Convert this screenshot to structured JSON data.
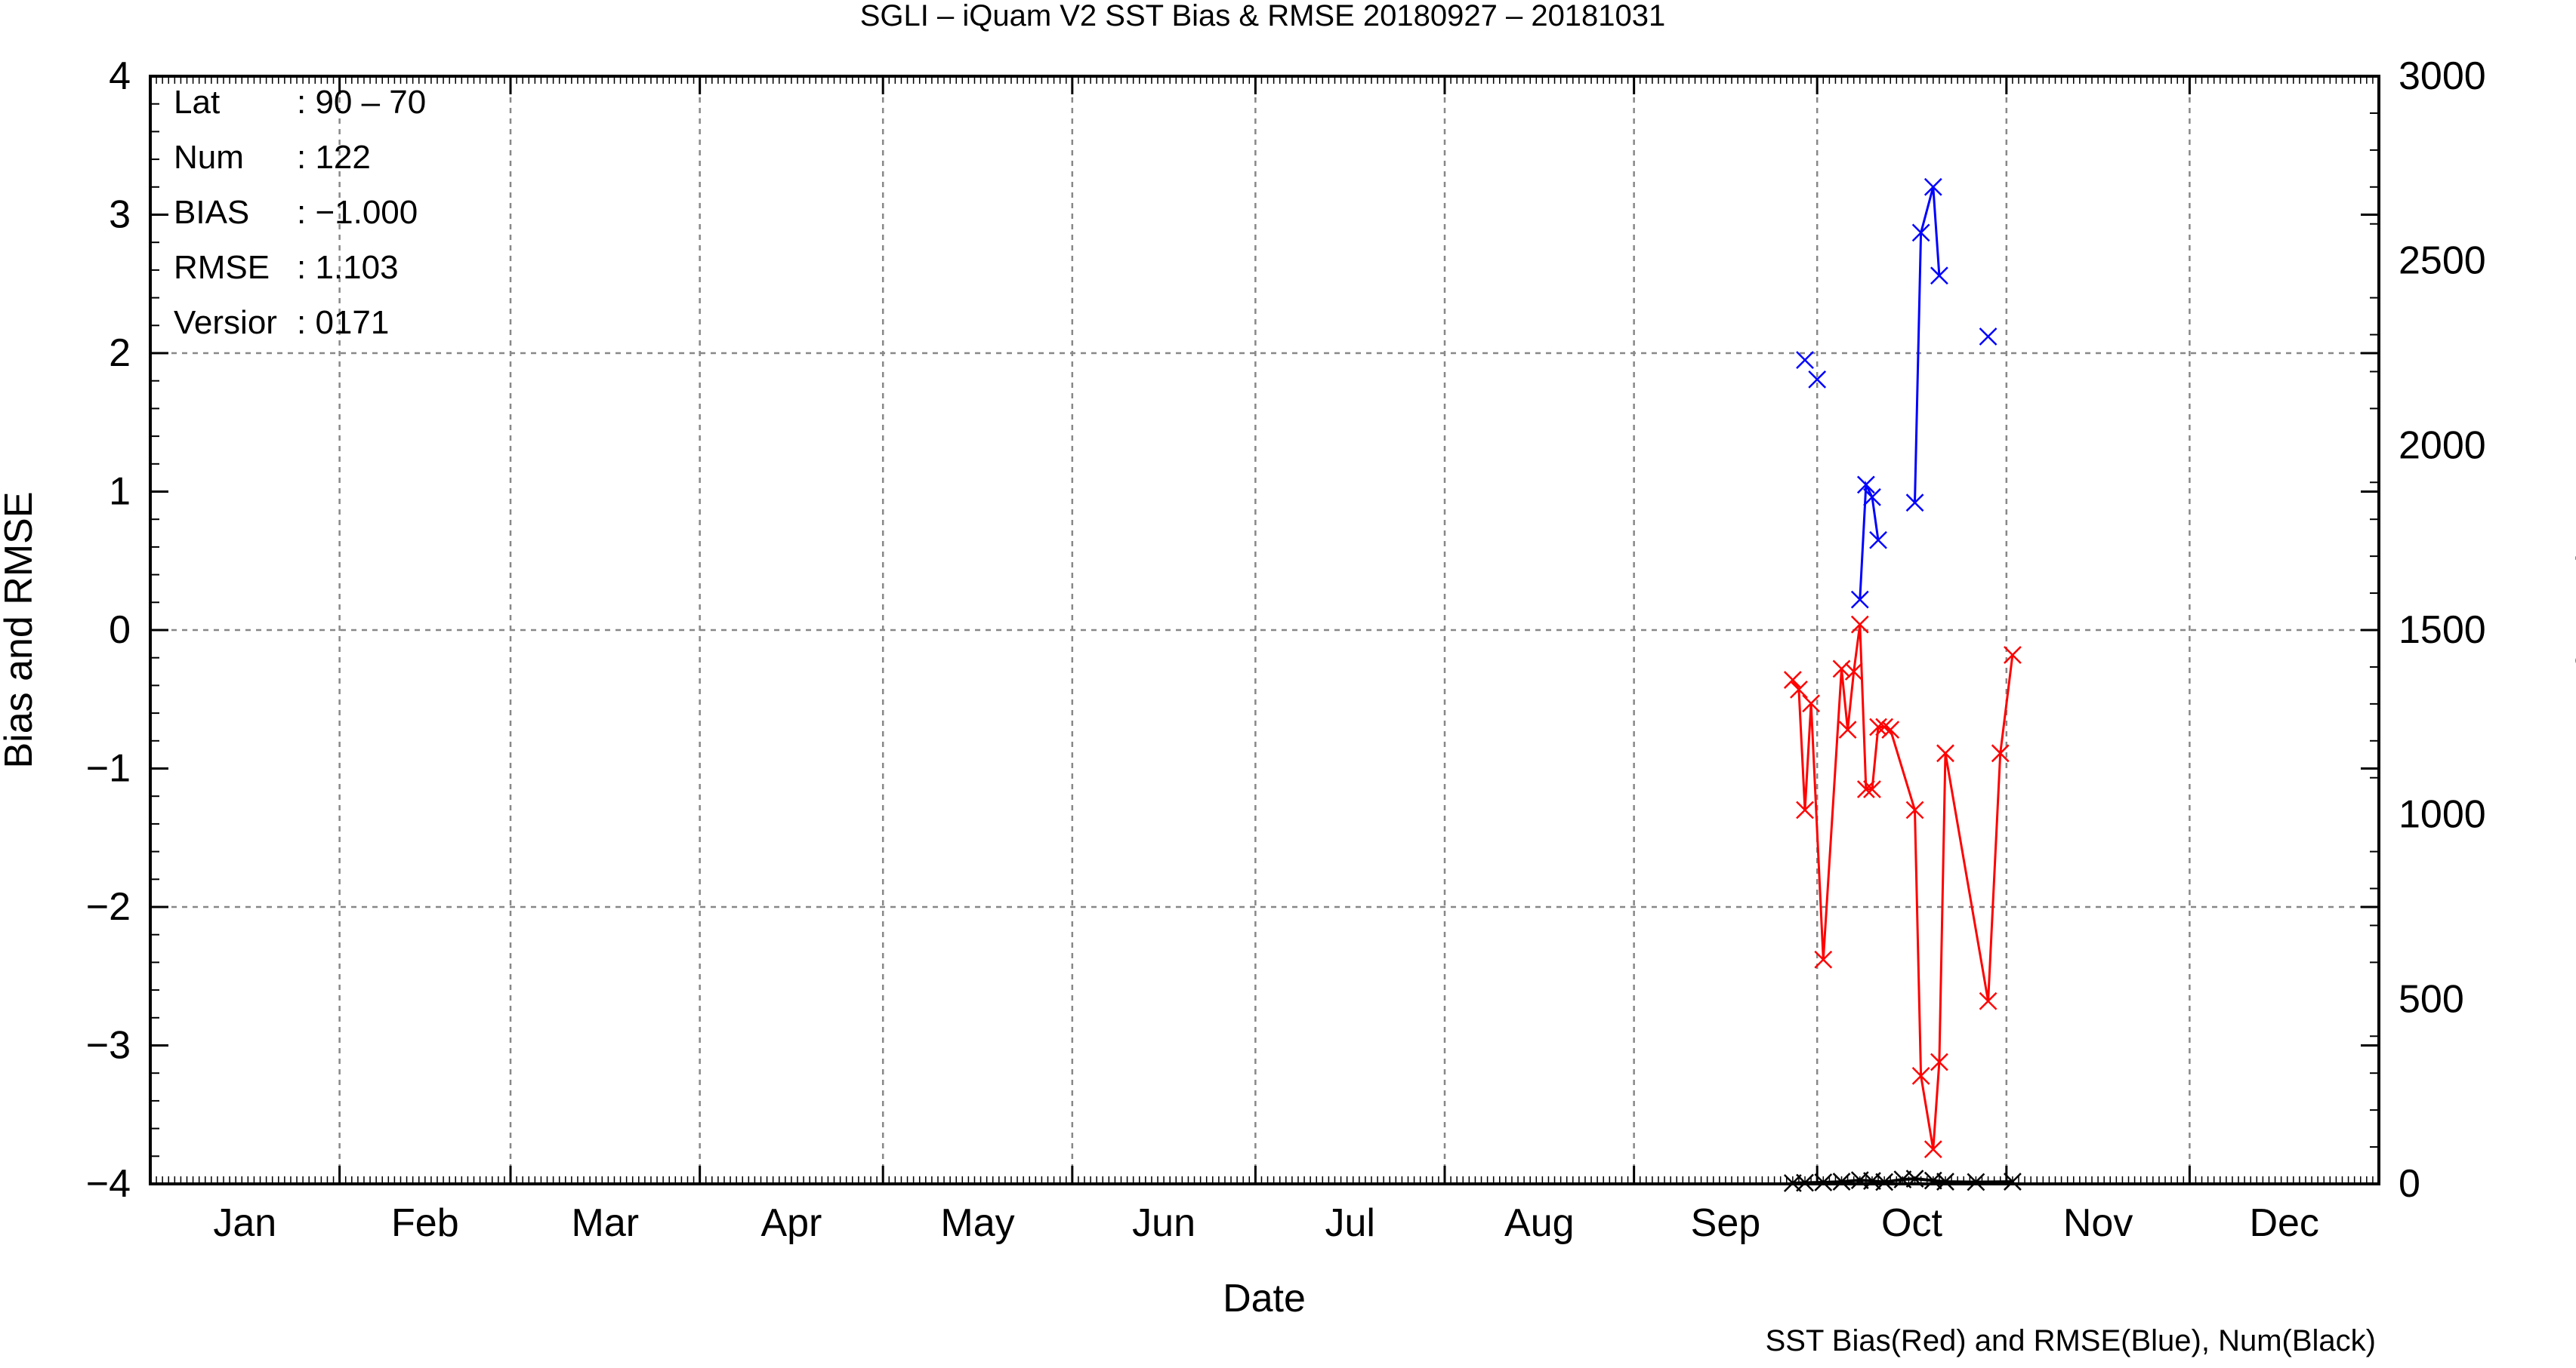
{
  "chart_data": {
    "type": "line",
    "title": "SGLI – iQuam V2 SST Bias & RMSE 20180927 – 20181031",
    "xlabel": "Date",
    "ylabel": "Bias and RMSE",
    "y2label": "Num of Match–up",
    "caption": "SST Bias(Red) and RMSE(Blue), Num(Black)",
    "x_unit": "day of year (2018)",
    "xlim": [
      1,
      366
    ],
    "ylim": [
      -4,
      4
    ],
    "y2lim": [
      0,
      3000
    ],
    "categories": [
      "Jan",
      "Feb",
      "Mar",
      "Apr",
      "May",
      "Jun",
      "Jul",
      "Aug",
      "Sep",
      "Oct",
      "Nov",
      "Dec"
    ],
    "y_ticks": [
      "4",
      "3",
      "2",
      "1",
      "0",
      "−1",
      "−2",
      "−3",
      "−4"
    ],
    "y2_ticks": [
      "3000",
      "2500",
      "2000",
      "1500",
      "1000",
      "500",
      "0"
    ],
    "grid": true,
    "info_box": {
      "placement": "top-left",
      "rows": [
        {
          "key": "Lat",
          "value": ": 90 – 70"
        },
        {
          "key": "Num",
          "value": ": 122"
        },
        {
          "key": "BIAS",
          "value": ": −1.000"
        },
        {
          "key": "RMSE",
          "value": ": 1.103"
        },
        {
          "key": "Versior",
          "value": ": 0171"
        }
      ]
    },
    "series": [
      {
        "color": "#ff0000",
        "axis": "left",
        "points": [
          [
            270,
            -0.36
          ],
          [
            271,
            -0.43
          ],
          [
            272,
            -1.3
          ],
          [
            273,
            -0.53
          ],
          [
            275,
            -2.38
          ],
          [
            278,
            -0.28
          ],
          [
            279,
            -0.72
          ],
          [
            280,
            -0.3
          ],
          [
            281,
            0.04
          ],
          [
            282,
            -1.15
          ],
          [
            283,
            -1.15
          ],
          [
            284,
            -0.7
          ],
          [
            285,
            -0.7
          ],
          [
            286,
            -0.72
          ],
          [
            290,
            -1.3
          ],
          [
            291,
            -3.22
          ],
          [
            293,
            -3.75
          ],
          [
            294,
            -3.12
          ],
          [
            295,
            -0.89
          ],
          [
            302,
            -2.68
          ],
          [
            304,
            -0.89
          ],
          [
            306,
            -0.18
          ]
        ]
      },
      {
        "color": "#0000ff",
        "axis": "left",
        "segments": [
          [
            [
              272,
              1.95
            ]
          ],
          [
            [
              274,
              1.81
            ]
          ],
          [
            [
              281,
              0.22
            ],
            [
              282,
              1.05
            ],
            [
              283,
              0.96
            ],
            [
              284,
              0.65
            ]
          ],
          [
            [
              290,
              0.92
            ],
            [
              291,
              2.87
            ],
            [
              293,
              3.2
            ],
            [
              294,
              2.56
            ]
          ],
          [
            [
              302,
              2.12
            ]
          ]
        ]
      },
      {
        "color": "#000000",
        "axis": "right",
        "points": [
          [
            270,
            2
          ],
          [
            272,
            3
          ],
          [
            275,
            4
          ],
          [
            278,
            6
          ],
          [
            281,
            10
          ],
          [
            283,
            8
          ],
          [
            285,
            5
          ],
          [
            288,
            12
          ],
          [
            290,
            14
          ],
          [
            293,
            9
          ],
          [
            295,
            6
          ],
          [
            300,
            5
          ],
          [
            306,
            6
          ]
        ]
      }
    ]
  }
}
